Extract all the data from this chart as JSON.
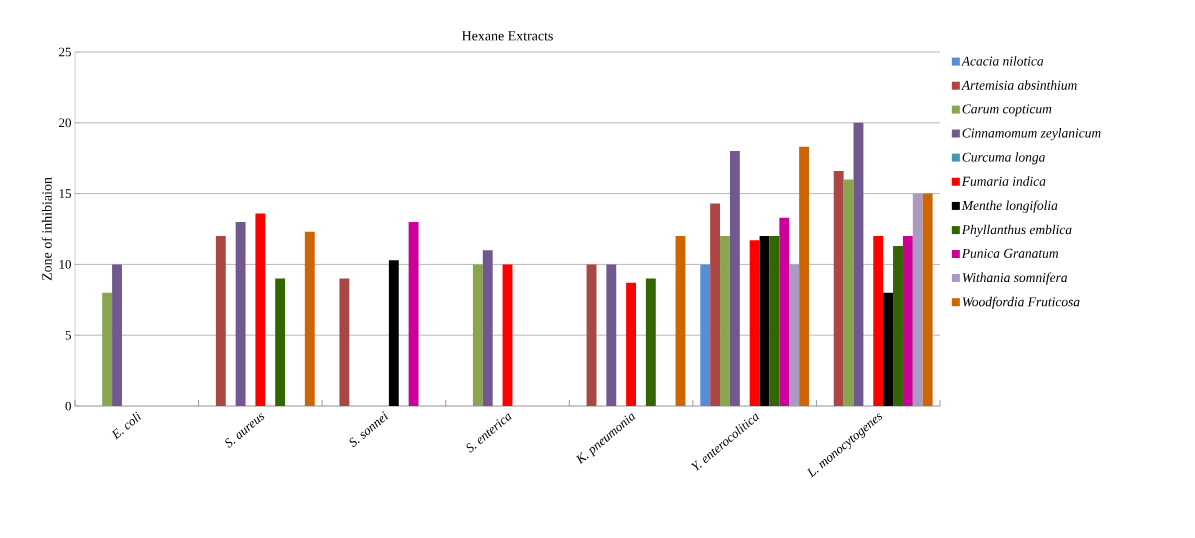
{
  "chart_data": {
    "type": "bar",
    "title": "Hexane Extracts",
    "ylabel": "Zone of inhibiaion",
    "categories": [
      "E. coli",
      "S. aureus",
      "S. sonnei",
      "S. enterica",
      "K. pneumonia",
      "Y. enterocolitica",
      "L. monocytogenes"
    ],
    "ylim": [
      0,
      25
    ],
    "yticks": [
      0,
      5,
      10,
      15,
      20,
      25
    ],
    "grid": "y",
    "legend": "right",
    "series": [
      {
        "name": "Acacia nilotica",
        "color": "#558ed5",
        "values": [
          null,
          null,
          null,
          null,
          null,
          10,
          null
        ]
      },
      {
        "name": "Artemisia absinthium",
        "color": "#aa4643",
        "values": [
          null,
          12,
          9,
          null,
          10,
          14.3,
          16.6
        ]
      },
      {
        "name": "Carum copticum",
        "color": "#89a54e",
        "values": [
          8,
          null,
          null,
          10,
          null,
          12,
          16
        ]
      },
      {
        "name": "Cinnamomum zeylanicum",
        "color": "#71588f",
        "values": [
          10,
          13,
          null,
          11,
          10,
          18,
          20
        ]
      },
      {
        "name": "Curcuma longa",
        "color": "#4198af",
        "values": [
          null,
          null,
          null,
          null,
          null,
          null,
          null
        ]
      },
      {
        "name": "Fumaria indica",
        "color": "#ff0000",
        "values": [
          null,
          13.6,
          null,
          10,
          8.7,
          11.7,
          12
        ]
      },
      {
        "name": "Menthe longifolia",
        "color": "#000000",
        "values": [
          null,
          null,
          10.3,
          null,
          null,
          12,
          8
        ]
      },
      {
        "name": "Phyllanthus emblica",
        "color": "#336600",
        "values": [
          null,
          9,
          null,
          null,
          9,
          12,
          11.3
        ]
      },
      {
        "name": "Punica Granatum",
        "color": "#cc0099",
        "values": [
          null,
          null,
          13,
          null,
          null,
          13.3,
          12
        ]
      },
      {
        "name": "Withania somnifera",
        "color": "#aa99c0",
        "values": [
          null,
          null,
          null,
          null,
          null,
          10,
          15
        ]
      },
      {
        "name": "Woodfordia Fruticosa",
        "color": "#cc6600",
        "values": [
          null,
          12.3,
          null,
          null,
          12,
          18.3,
          15
        ]
      }
    ]
  }
}
